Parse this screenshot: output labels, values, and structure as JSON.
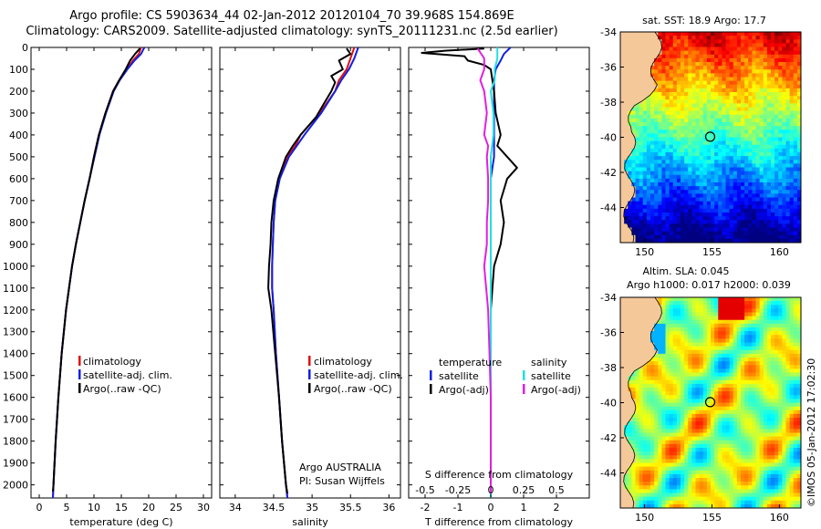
{
  "header": {
    "line1": "Argo profile: CS 5903634_44 02-Jan-2012 20120104_70 39.968S 154.869E",
    "line2": "Climatology: CARS2009. Satellite-adjusted climatology: synTS_20111231.nc (2.5d earlier)"
  },
  "colors": {
    "climatology": "#e01010",
    "satellite": "#1020e0",
    "argo": "#000000",
    "satellite_s": "#20e0e0",
    "argo_s": "#e020e0",
    "land": "#f5c89a"
  },
  "chart_data": [
    {
      "id": "temperature",
      "type": "line",
      "title": "",
      "xlabel": "temperature (deg C)",
      "ylabel": "",
      "xlim": [
        -1.5,
        31.5
      ],
      "ylim": [
        2060,
        0
      ],
      "xticks": [
        "0",
        "5",
        "10",
        "15",
        "20",
        "25",
        "30"
      ],
      "xtick_values": [
        0,
        5,
        10,
        15,
        20,
        25,
        30
      ],
      "yticks": [
        "0",
        "100",
        "200",
        "300",
        "400",
        "500",
        "600",
        "700",
        "800",
        "900",
        "1000",
        "1100",
        "1200",
        "1300",
        "1400",
        "1500",
        "1600",
        "1700",
        "1800",
        "1900",
        "2000"
      ],
      "ytick_values": [
        0,
        100,
        200,
        300,
        400,
        500,
        600,
        700,
        800,
        900,
        1000,
        1100,
        1200,
        1300,
        1400,
        1500,
        1600,
        1700,
        1800,
        1900,
        2000
      ],
      "legend": [
        "climatology",
        "satellite-adj. clim.",
        "Argo(..raw -QC)"
      ],
      "series": [
        {
          "name": "climatology",
          "color": "#e01010",
          "depth": [
            0,
            30,
            60,
            100,
            150,
            200,
            300,
            400,
            500,
            600,
            700,
            800,
            900,
            1000,
            1200,
            1400,
            1600,
            1800,
            2000,
            2060
          ],
          "values": [
            18.6,
            18.2,
            17.1,
            16.0,
            14.6,
            13.5,
            12.1,
            10.9,
            10.0,
            9.2,
            8.3,
            7.5,
            6.7,
            6.0,
            4.9,
            4.1,
            3.5,
            3.0,
            2.6,
            2.5
          ]
        },
        {
          "name": "satellite-adj. clim.",
          "color": "#1020e0",
          "depth": [
            0,
            30,
            60,
            100,
            150,
            200,
            300,
            400,
            500,
            600,
            700,
            800,
            900,
            1000,
            1200,
            1400,
            1600,
            1800,
            2000,
            2060
          ],
          "values": [
            19.2,
            18.6,
            17.4,
            16.1,
            14.7,
            13.6,
            12.2,
            11.0,
            10.1,
            9.2,
            8.3,
            7.5,
            6.7,
            6.0,
            4.9,
            4.1,
            3.5,
            3.0,
            2.6,
            2.5
          ]
        },
        {
          "name": "Argo(..raw -QC)",
          "color": "#000000",
          "depth": [
            5,
            30,
            60,
            100,
            150,
            200,
            300,
            400,
            500,
            600,
            700,
            800,
            900,
            1000,
            1200,
            1400,
            1600,
            1800,
            2000,
            2030
          ],
          "values": [
            18.4,
            17.5,
            16.6,
            15.8,
            14.6,
            13.5,
            12.1,
            10.9,
            10.0,
            9.2,
            8.3,
            7.5,
            6.7,
            6.0,
            4.9,
            4.1,
            3.5,
            3.0,
            2.6,
            2.5
          ]
        }
      ]
    },
    {
      "id": "salinity",
      "type": "line",
      "xlabel": "salinity",
      "xlim": [
        33.8,
        36.15
      ],
      "ylim": [
        2060,
        0
      ],
      "xticks": [
        "34",
        "34.5",
        "35",
        "35.5",
        "36"
      ],
      "xtick_values": [
        34,
        34.5,
        35,
        35.5,
        36
      ],
      "legend": [
        "climatology",
        "satellite-adj. clim.",
        "Argo(..raw -QC)"
      ],
      "annotations": [
        "Argo AUSTRALIA",
        "PI: Susan Wijffels"
      ],
      "series": [
        {
          "name": "climatology",
          "color": "#e01010",
          "depth": [
            0,
            50,
            100,
            150,
            200,
            300,
            400,
            450,
            500,
            600,
            700,
            800,
            900,
            1000,
            1100,
            1200,
            1400,
            1600,
            1800,
            2000,
            2060
          ],
          "values": [
            35.55,
            35.5,
            35.45,
            35.35,
            35.3,
            35.1,
            34.85,
            34.78,
            34.68,
            34.58,
            34.52,
            34.5,
            34.49,
            34.48,
            34.48,
            34.5,
            34.53,
            34.57,
            34.61,
            34.66,
            34.68
          ]
        },
        {
          "name": "satellite-adj. clim.",
          "color": "#1020e0",
          "depth": [
            0,
            50,
            100,
            150,
            200,
            300,
            400,
            450,
            500,
            600,
            700,
            800,
            900,
            1000,
            1100,
            1200,
            1400,
            1600,
            1800,
            2000,
            2060
          ],
          "values": [
            35.6,
            35.55,
            35.48,
            35.38,
            35.3,
            35.12,
            34.9,
            34.8,
            34.7,
            34.58,
            34.52,
            34.5,
            34.49,
            34.48,
            34.48,
            34.5,
            34.53,
            34.57,
            34.61,
            34.66,
            34.68
          ]
        },
        {
          "name": "Argo(..raw -QC)",
          "color": "#000000",
          "depth": [
            5,
            30,
            60,
            100,
            130,
            160,
            200,
            260,
            320,
            400,
            450,
            500,
            600,
            700,
            800,
            900,
            1000,
            1100,
            1200,
            1400,
            1600,
            1800,
            2000,
            2040
          ],
          "values": [
            35.45,
            35.5,
            35.35,
            35.4,
            35.25,
            35.3,
            35.25,
            35.15,
            35.05,
            34.85,
            34.75,
            34.66,
            34.56,
            34.5,
            34.47,
            34.46,
            34.44,
            34.43,
            34.47,
            34.52,
            34.57,
            34.61,
            34.66,
            34.68
          ]
        }
      ]
    },
    {
      "id": "difference",
      "type": "line",
      "xlabel": "T difference from climatology",
      "xlabel_top": "S difference from climatology",
      "xlim": [
        -2.5,
        3.0
      ],
      "ylim": [
        2060,
        0
      ],
      "xticks": [
        "-2",
        "-1",
        "0",
        "1",
        "2"
      ],
      "xtick_values": [
        -2,
        -1,
        0,
        1,
        2
      ],
      "s_xticks": [
        "-0.5",
        "-0.25",
        "0",
        "0.25",
        "0.5"
      ],
      "s_xtick_values": [
        -0.5,
        -0.25,
        0,
        0.25,
        0.5
      ],
      "legend_headers": [
        "temperature",
        "salinity"
      ],
      "legend": [
        "satellite",
        "Argo(-adj)",
        "satellite",
        "Argo(-adj)"
      ],
      "series": [
        {
          "name": "temperature satellite",
          "color": "#1020e0",
          "depth": [
            0,
            30,
            60,
            100,
            150,
            200,
            300,
            400,
            500,
            600,
            700,
            800,
            1000,
            1200,
            1600,
            2000,
            2060
          ],
          "values": [
            0.6,
            0.4,
            0.3,
            0.15,
            0.1,
            0.1,
            0.1,
            0.1,
            0.1,
            0.0,
            0.0,
            0.0,
            0.0,
            0.0,
            0.0,
            0.0,
            0.0
          ]
        },
        {
          "name": "temperature Argo(-adj)",
          "color": "#000000",
          "depth": [
            5,
            15,
            25,
            40,
            60,
            80,
            100,
            150,
            200,
            300,
            400,
            450,
            500,
            550,
            600,
            700,
            800,
            900,
            1000,
            1200,
            1400,
            1600,
            1800,
            2000,
            2040
          ],
          "values": [
            -0.2,
            -1.4,
            -2.1,
            -0.8,
            -0.7,
            -0.2,
            0.0,
            0.05,
            0.1,
            0.15,
            0.3,
            0.2,
            0.5,
            0.8,
            0.5,
            0.3,
            0.4,
            0.3,
            0.1,
            0.0,
            0.0,
            0.0,
            0.0,
            0.0,
            0.0
          ]
        },
        {
          "name": "salinity satellite",
          "color": "#20e0e0",
          "depth": [
            0,
            50,
            100,
            150,
            200,
            300,
            400,
            500,
            600,
            700,
            800,
            1000,
            1200,
            1600,
            2000,
            2060
          ],
          "values": [
            0.05,
            0.05,
            0.03,
            0.03,
            0.0,
            0.02,
            0.02,
            0.0,
            0.0,
            0.0,
            0.0,
            0.0,
            0.0,
            0.0,
            0.0,
            0.0
          ]
        },
        {
          "name": "salinity Argo(-adj)",
          "color": "#e020e0",
          "depth": [
            5,
            50,
            100,
            150,
            200,
            300,
            400,
            450,
            500,
            600,
            700,
            800,
            900,
            1000,
            1200,
            1400,
            1600,
            1800,
            2000,
            2040
          ],
          "values": [
            -0.1,
            -0.05,
            -0.05,
            -0.08,
            -0.05,
            -0.03,
            -0.05,
            -0.02,
            -0.03,
            -0.02,
            -0.02,
            -0.03,
            -0.03,
            -0.05,
            -0.02,
            -0.01,
            0.0,
            0.0,
            0.0,
            0.0
          ]
        }
      ]
    },
    {
      "id": "sst_map",
      "type": "heatmap",
      "title": "sat. SST: 18.9  Argo: 17.7",
      "xlim": [
        148.2,
        161.6
      ],
      "ylim": [
        -46.0,
        -34.0
      ],
      "xticks": [
        "150",
        "155",
        "160"
      ],
      "xtick_values": [
        150,
        155,
        160
      ],
      "yticks": [
        "-34",
        "-36",
        "-38",
        "-40",
        "-42",
        "-44"
      ],
      "ytick_values": [
        -34,
        -36,
        -38,
        -40,
        -42,
        -44
      ],
      "marker": [
        154.869,
        -39.968
      ]
    },
    {
      "id": "sla_map",
      "type": "heatmap",
      "title": "Altim. SLA: 0.045",
      "subtitle": "Argo h1000: 0.017 h2000: 0.039",
      "xlim": [
        148.2,
        161.6
      ],
      "ylim": [
        -46.0,
        -34.0
      ],
      "xticks": [
        "150",
        "155",
        "160"
      ],
      "xtick_values": [
        150,
        155,
        160
      ],
      "yticks": [
        "-34",
        "-36",
        "-38",
        "-40",
        "-42",
        "-44"
      ],
      "ytick_values": [
        -34,
        -36,
        -38,
        -40,
        -42,
        -44
      ],
      "marker": [
        154.869,
        -39.968
      ]
    }
  ],
  "credit": "©IMOS 05-Jan-2012 17:02:30"
}
